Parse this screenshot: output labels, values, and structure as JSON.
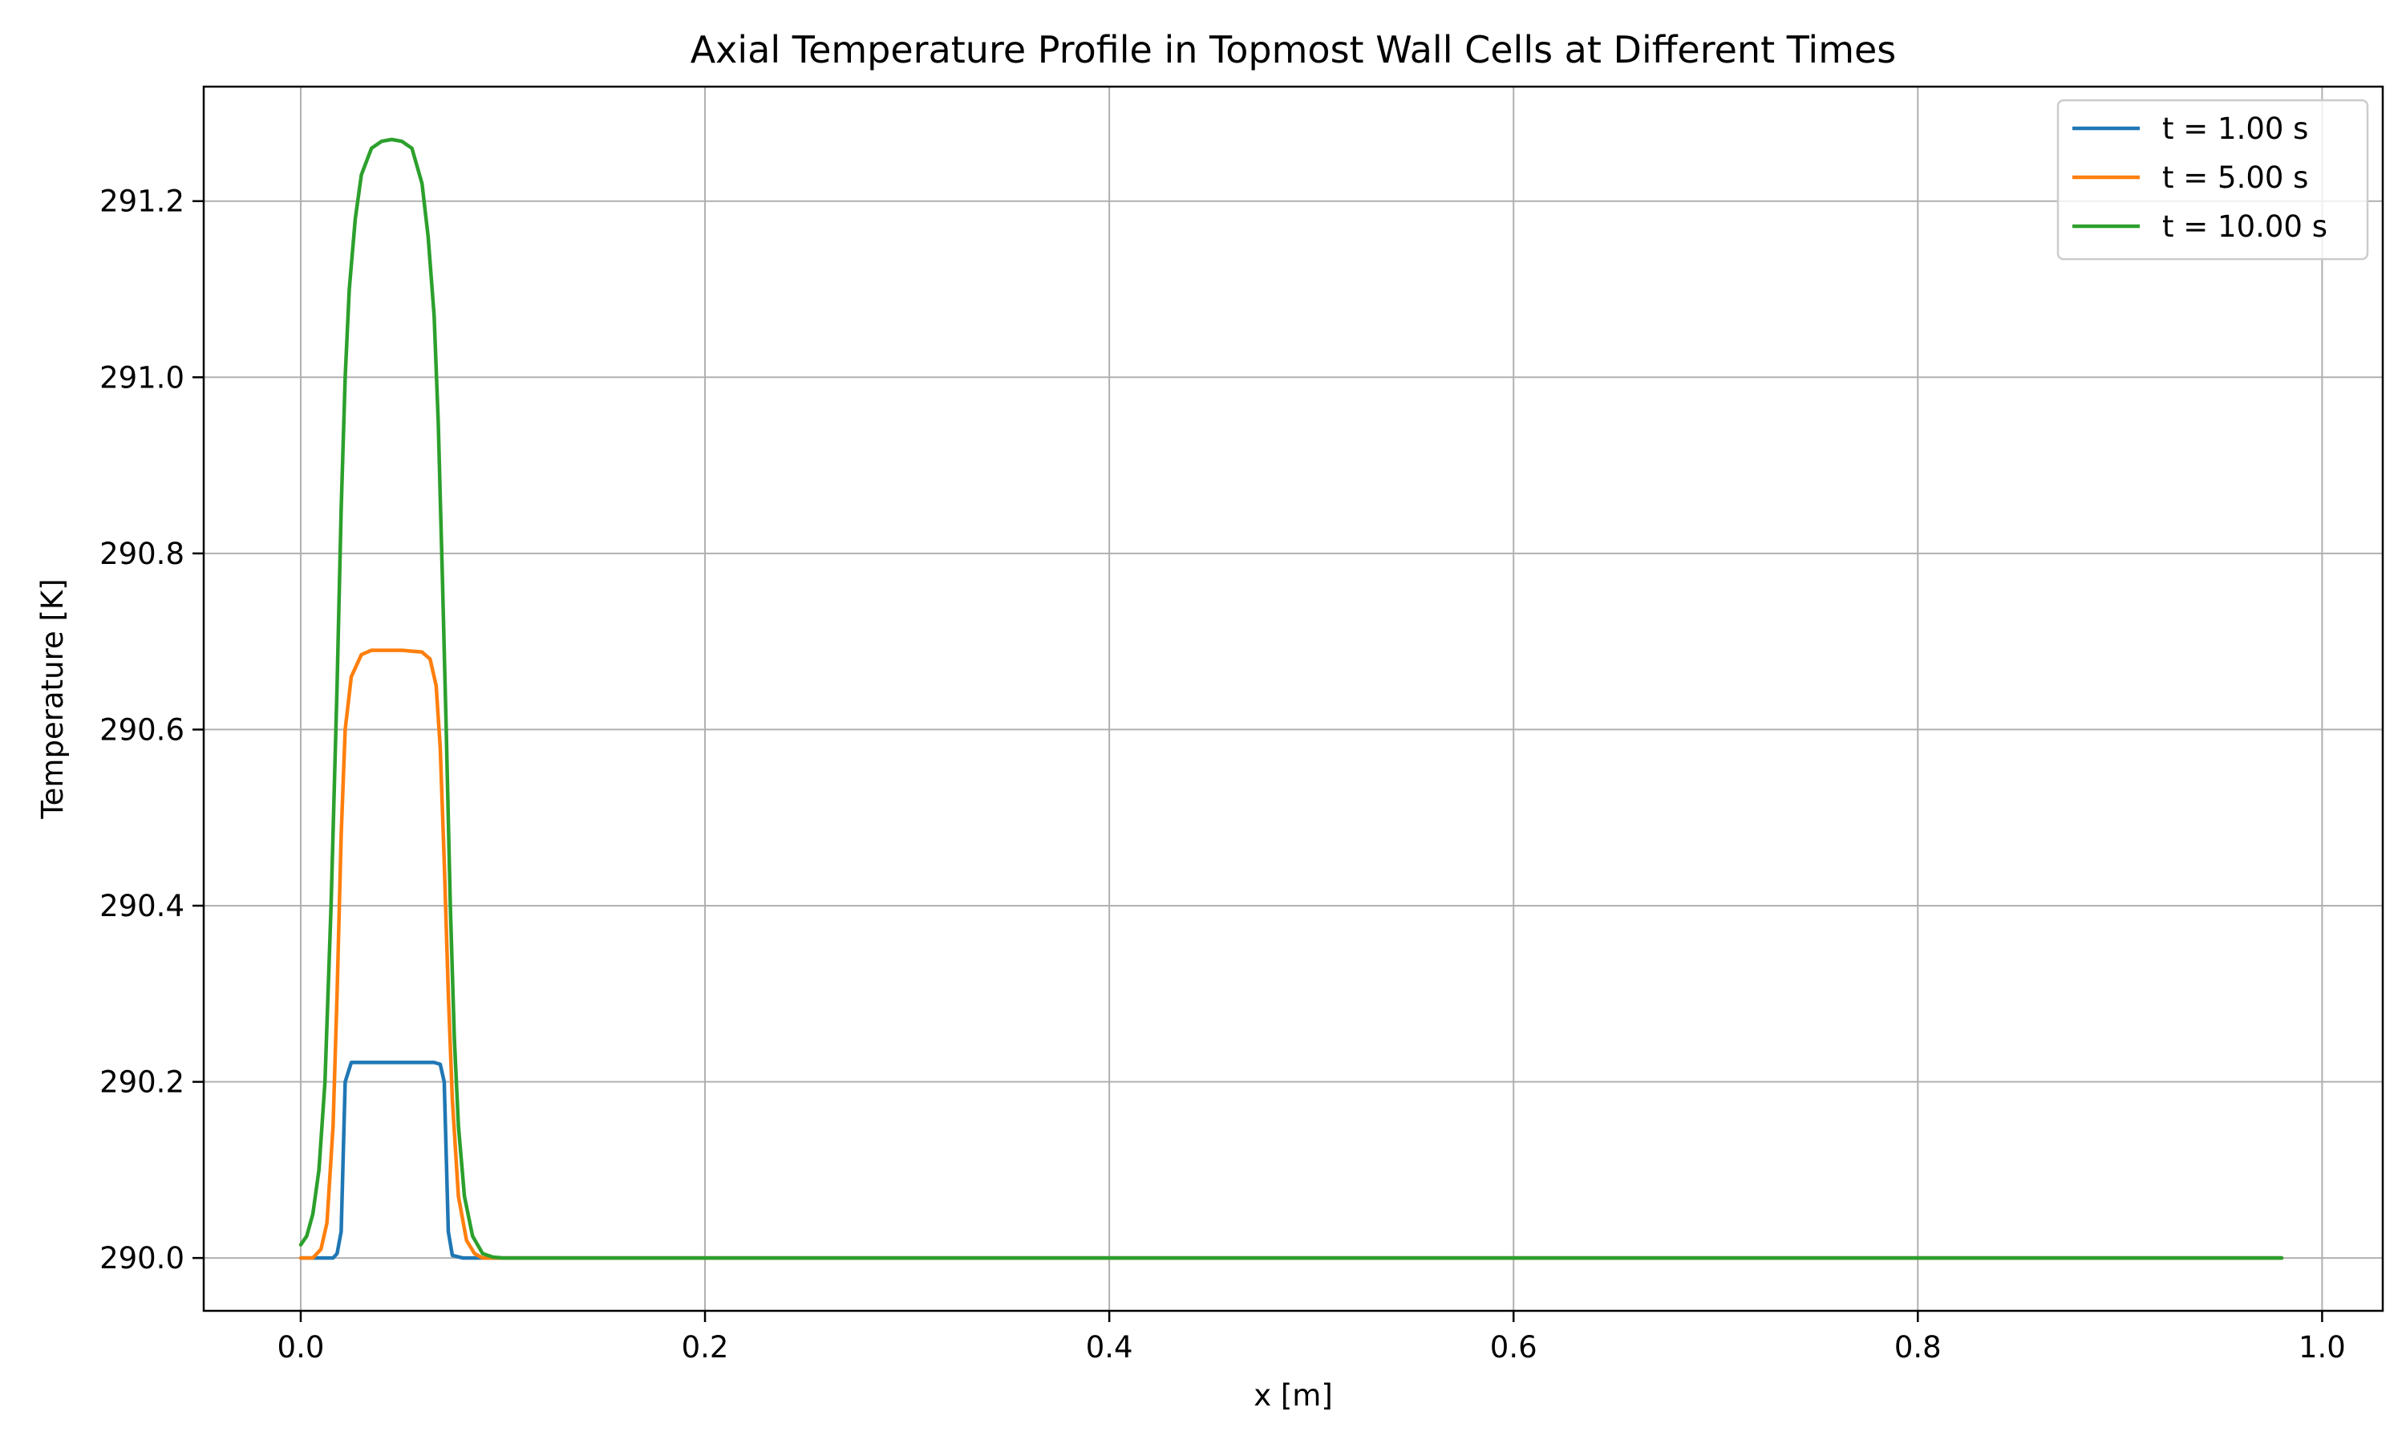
{
  "chart_data": {
    "type": "line",
    "title": "Axial Temperature Profile in Topmost Wall Cells at Different Times",
    "xlabel": "x [m]",
    "ylabel": "Temperature [K]",
    "xlim": [
      -0.048,
      1.03
    ],
    "ylim": [
      289.94,
      291.33
    ],
    "xticks": [
      0.0,
      0.2,
      0.4,
      0.6,
      0.8,
      1.0
    ],
    "xtick_labels": [
      "0.0",
      "0.2",
      "0.4",
      "0.6",
      "0.8",
      "1.0"
    ],
    "yticks": [
      290.0,
      290.2,
      290.4,
      290.6,
      290.8,
      291.0,
      291.2
    ],
    "ytick_labels": [
      "290.0",
      "290.2",
      "290.4",
      "290.6",
      "290.8",
      "291.0",
      "291.2"
    ],
    "grid": true,
    "legend_position": "top-right",
    "series": [
      {
        "name": "t = 1.00 s",
        "color": "#1f77b4",
        "x": [
          0.0,
          0.01,
          0.016,
          0.018,
          0.02,
          0.022,
          0.025,
          0.03,
          0.04,
          0.05,
          0.06,
          0.066,
          0.069,
          0.071,
          0.073,
          0.075,
          0.08,
          0.1,
          0.2,
          0.4,
          0.6,
          0.8,
          0.98
        ],
        "y": [
          290.0,
          290.0,
          290.0,
          290.005,
          290.03,
          290.2,
          290.222,
          290.222,
          290.222,
          290.222,
          290.222,
          290.222,
          290.22,
          290.2,
          290.03,
          290.003,
          290.0,
          290.0,
          290.0,
          290.0,
          290.0,
          290.0,
          290.0
        ]
      },
      {
        "name": "t = 5.00 s",
        "color": "#ff7f0e",
        "x": [
          0.0,
          0.006,
          0.01,
          0.013,
          0.016,
          0.018,
          0.02,
          0.022,
          0.025,
          0.03,
          0.035,
          0.04,
          0.05,
          0.06,
          0.064,
          0.067,
          0.069,
          0.071,
          0.073,
          0.075,
          0.078,
          0.082,
          0.086,
          0.09,
          0.1,
          0.2,
          0.4,
          0.6,
          0.8,
          0.98
        ],
        "y": [
          290.0,
          290.0,
          290.01,
          290.04,
          290.15,
          290.3,
          290.48,
          290.6,
          290.66,
          290.685,
          290.69,
          290.69,
          290.69,
          290.688,
          290.68,
          290.65,
          290.58,
          290.45,
          290.3,
          290.18,
          290.07,
          290.02,
          290.005,
          290.0,
          290.0,
          290.0,
          290.0,
          290.0,
          290.0,
          290.0
        ]
      },
      {
        "name": "t = 10.00 s",
        "color": "#2ca02c",
        "x": [
          0.0,
          0.003,
          0.006,
          0.009,
          0.012,
          0.015,
          0.018,
          0.02,
          0.022,
          0.024,
          0.027,
          0.03,
          0.035,
          0.04,
          0.045,
          0.05,
          0.055,
          0.06,
          0.063,
          0.066,
          0.068,
          0.07,
          0.072,
          0.074,
          0.076,
          0.078,
          0.081,
          0.085,
          0.09,
          0.095,
          0.1,
          0.2,
          0.4,
          0.6,
          0.8,
          0.98
        ],
        "y": [
          290.015,
          290.025,
          290.05,
          290.1,
          290.2,
          290.4,
          290.65,
          290.85,
          291.0,
          291.1,
          291.18,
          291.23,
          291.26,
          291.268,
          291.27,
          291.268,
          291.26,
          291.22,
          291.16,
          291.07,
          290.95,
          290.78,
          290.6,
          290.4,
          290.25,
          290.15,
          290.07,
          290.025,
          290.005,
          290.001,
          290.0,
          290.0,
          290.0,
          290.0,
          290.0,
          290.0
        ]
      }
    ]
  }
}
